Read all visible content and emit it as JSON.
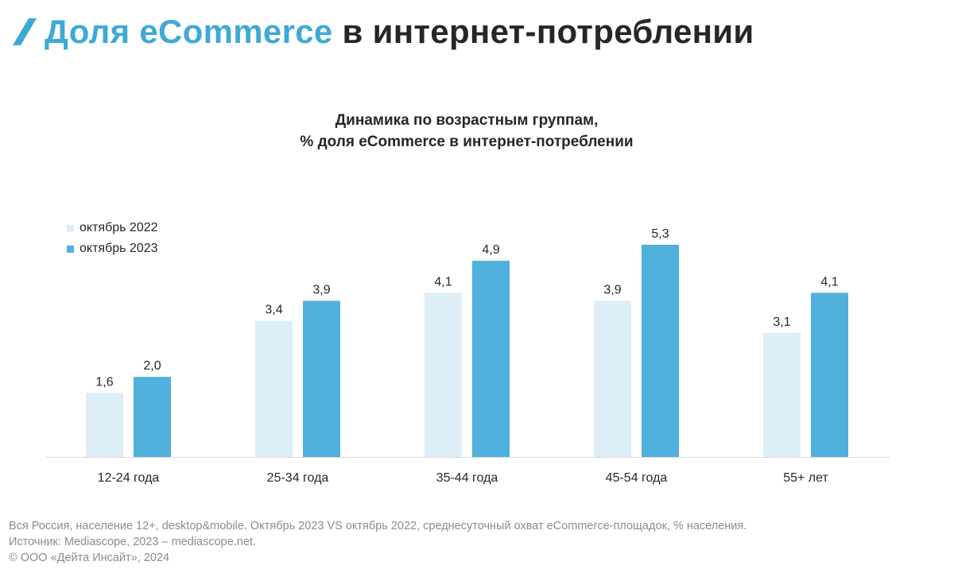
{
  "header": {
    "title_accent": "Доля eCommerce",
    "title_rest": "в интернет-потреблении",
    "accent_color": "#3fa9d5"
  },
  "chart_data": {
    "type": "bar",
    "title": "Динамика по возрастным группам,",
    "subtitle": "% доля eCommerce в интернет-потреблении",
    "categories": [
      "12-24 года",
      "25-34 года",
      "35-44 года",
      "45-54 года",
      "55+ лет"
    ],
    "series": [
      {
        "name": "октябрь 2022",
        "color": "#ddeef8",
        "values": [
          1.6,
          3.4,
          4.1,
          3.9,
          3.1
        ],
        "labels": [
          "1,6",
          "3,4",
          "4,1",
          "3,9",
          "3,1"
        ]
      },
      {
        "name": "октябрь 2023",
        "color": "#4fb0db",
        "values": [
          2.0,
          3.9,
          4.9,
          5.3,
          4.1
        ],
        "labels": [
          "2,0",
          "3,9",
          "4,9",
          "5,3",
          "4,1"
        ]
      }
    ],
    "xlabel": "",
    "ylabel": "",
    "ylim": [
      0,
      5.3
    ],
    "legend_position": "top-left",
    "grid": false
  },
  "footer": {
    "line1": "Вся Россия, население 12+, desktop&mobile. Октябрь 2023 VS октябрь 2022, среднесуточный охват eCommerce-площадок, % населения.",
    "line2": "Источник: Mediascope, 2023 – mediascope.net.",
    "line3": "© ООО «Дейта Инсайт», 2024"
  }
}
